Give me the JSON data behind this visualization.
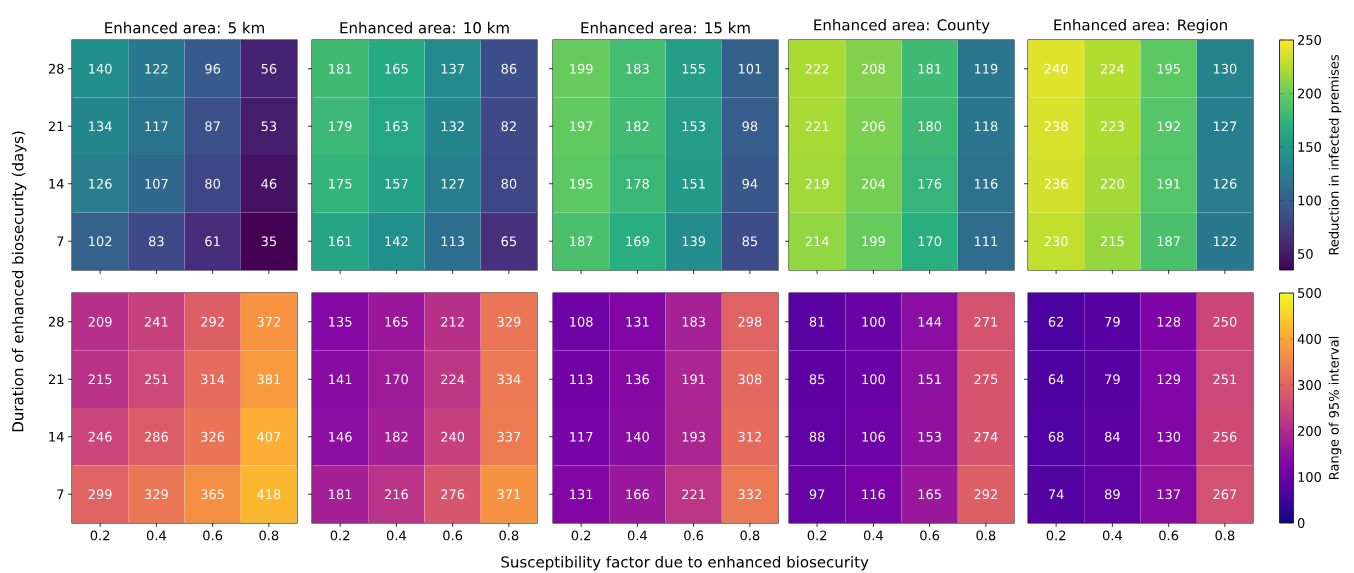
{
  "chart_data": [
    {
      "type": "heatmap",
      "title": "Enhanced area: 5 km",
      "ylabel": "Duration of enhanced biosecurity (days)",
      "categories": [
        "0.2",
        "0.4",
        "0.6",
        "0.8"
      ],
      "y_categories": [
        "28",
        "21",
        "14",
        "7"
      ],
      "tick_labels": "y",
      "data_labels": true,
      "cells": [
        [
          140,
          122,
          96,
          56
        ],
        [
          134,
          117,
          87,
          53
        ],
        [
          126,
          107,
          80,
          46
        ],
        [
          102,
          83,
          61,
          35
        ]
      ]
    },
    {
      "type": "heatmap",
      "title": "Enhanced area: 10 km",
      "categories": [
        "0.2",
        "0.4",
        "0.6",
        "0.8"
      ],
      "y_categories": [
        "28",
        "21",
        "14",
        "7"
      ],
      "tick_labels": false,
      "data_labels": true,
      "cells": [
        [
          181,
          165,
          137,
          86
        ],
        [
          179,
          163,
          132,
          82
        ],
        [
          175,
          157,
          127,
          80
        ],
        [
          161,
          142,
          113,
          65
        ]
      ]
    },
    {
      "type": "heatmap",
      "title": "Enhanced area: 15 km",
      "categories": [
        "0.2",
        "0.4",
        "0.6",
        "0.8"
      ],
      "y_categories": [
        "28",
        "21",
        "14",
        "7"
      ],
      "tick_labels": false,
      "data_labels": true,
      "cells": [
        [
          199,
          183,
          155,
          101
        ],
        [
          197,
          182,
          153,
          98
        ],
        [
          195,
          178,
          151,
          94
        ],
        [
          187,
          169,
          139,
          85
        ]
      ]
    },
    {
      "type": "heatmap",
      "title": "Enhanced area: County",
      "categories": [
        "0.2",
        "0.4",
        "0.6",
        "0.8"
      ],
      "y_categories": [
        "28",
        "21",
        "14",
        "7"
      ],
      "tick_labels": false,
      "data_labels": true,
      "cells": [
        [
          222,
          208,
          181,
          119
        ],
        [
          221,
          206,
          180,
          118
        ],
        [
          219,
          204,
          176,
          116
        ],
        [
          214,
          199,
          170,
          111
        ]
      ]
    },
    {
      "type": "heatmap",
      "title": "Enhanced area: Region",
      "clabel": "Reduction in infected premises",
      "categories": [
        "0.2",
        "0.4",
        "0.6",
        "0.8"
      ],
      "y_categories": [
        "28",
        "21",
        "14",
        "7"
      ],
      "tick_labels": false,
      "data_labels": true,
      "clim": [
        35,
        250
      ],
      "cticks": [
        50,
        100,
        150,
        200,
        250
      ],
      "cells": [
        [
          240,
          224,
          195,
          130
        ],
        [
          238,
          223,
          192,
          127
        ],
        [
          236,
          220,
          191,
          126
        ],
        [
          230,
          215,
          187,
          122
        ]
      ]
    },
    {
      "type": "heatmap",
      "categories": [
        "0.2",
        "0.4",
        "0.6",
        "0.8"
      ],
      "y_categories": [
        "28",
        "21",
        "14",
        "7"
      ],
      "data_labels": true,
      "cells": [
        [
          209,
          241,
          292,
          372
        ],
        [
          215,
          251,
          314,
          381
        ],
        [
          246,
          286,
          326,
          407
        ],
        [
          299,
          329,
          365,
          418
        ]
      ]
    },
    {
      "type": "heatmap",
      "categories": [
        "0.2",
        "0.4",
        "0.6",
        "0.8"
      ],
      "y_categories": [
        "28",
        "21",
        "14",
        "7"
      ],
      "tick_labels": "x",
      "data_labels": true,
      "cells": [
        [
          135,
          165,
          212,
          329
        ],
        [
          141,
          170,
          224,
          334
        ],
        [
          146,
          182,
          240,
          337
        ],
        [
          181,
          216,
          276,
          371
        ]
      ]
    },
    {
      "type": "heatmap",
      "xlabel": "Susceptibility factor due to enhanced biosecurity",
      "categories": [
        "0.2",
        "0.4",
        "0.6",
        "0.8"
      ],
      "y_categories": [
        "28",
        "21",
        "14",
        "7"
      ],
      "tick_labels": "x",
      "data_labels": true,
      "cells": [
        [
          108,
          131,
          183,
          298
        ],
        [
          113,
          136,
          191,
          308
        ],
        [
          117,
          140,
          193,
          312
        ],
        [
          131,
          166,
          221,
          332
        ]
      ]
    },
    {
      "type": "heatmap",
      "categories": [
        "0.2",
        "0.4",
        "0.6",
        "0.8"
      ],
      "y_categories": [
        "28",
        "21",
        "14",
        "7"
      ],
      "tick_labels": "x",
      "data_labels": true,
      "cells": [
        [
          81,
          100,
          144,
          271
        ],
        [
          85,
          100,
          151,
          275
        ],
        [
          88,
          106,
          153,
          274
        ],
        [
          97,
          116,
          165,
          292
        ]
      ]
    },
    {
      "type": "heatmap",
      "clabel": "Range of 95% interval",
      "categories": [
        "0.2",
        "0.4",
        "0.6",
        "0.8"
      ],
      "y_categories": [
        "28",
        "21",
        "14",
        "7"
      ],
      "tick_labels": "x",
      "data_labels": true,
      "clim": [
        0,
        500
      ],
      "cticks": [
        0,
        100,
        200,
        300,
        400,
        500
      ],
      "cells": [
        [
          62,
          79,
          128,
          250
        ],
        [
          64,
          79,
          129,
          251
        ],
        [
          68,
          84,
          130,
          256
        ],
        [
          74,
          89,
          137,
          267
        ]
      ]
    }
  ]
}
